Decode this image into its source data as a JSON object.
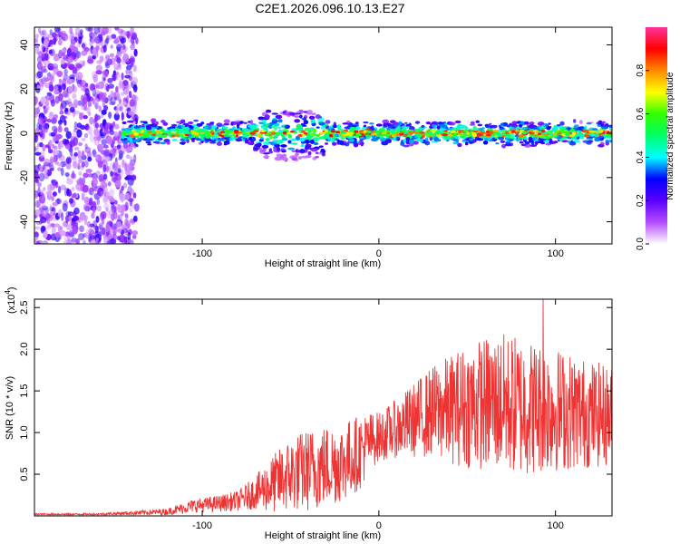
{
  "figure_title": "C2E1.2026.096.10.13.E27",
  "chart_data": [
    {
      "type": "heatmap",
      "name": "spectrogram",
      "xlabel": "Height of straight line (km)",
      "ylabel": "Frequency (Hz)",
      "xlim": [
        -195,
        132
      ],
      "ylim": [
        -50,
        48
      ],
      "xticks": [
        -100,
        0,
        100
      ],
      "xtick_labels": [
        "-100",
        "0",
        "100"
      ],
      "yticks": [
        -40,
        -20,
        0,
        20,
        40
      ],
      "ytick_labels": [
        "-40",
        "-20",
        "0",
        "20",
        "40"
      ],
      "colorbar": {
        "label": "Normalized spectral amplitude",
        "range": [
          0,
          1
        ],
        "ticks": [
          0.0,
          0.2,
          0.4,
          0.6,
          0.8
        ],
        "tick_labels": [
          "0.0",
          "0.2",
          "0.4",
          "0.6",
          "0.8"
        ],
        "colors": [
          "#ffffff",
          "#b44cff",
          "#5a00ff",
          "#0000ff",
          "#00ffff",
          "#00ff66",
          "#33ff00",
          "#ffff00",
          "#ff8800",
          "#ff0000",
          "#ff3399"
        ]
      },
      "noise_region_x": [
        -195,
        -137
      ],
      "band_x": [
        -145,
        132
      ],
      "band_center_hz": 0,
      "band_halfwidth_hz": 5,
      "disturbance_x": [
        -70,
        -30
      ],
      "disturbance_spread_hz": [
        -12,
        10
      ]
    },
    {
      "type": "line",
      "name": "snr",
      "xlabel": "Height of straight line (km)",
      "ylabel": "SNR (10 * v/v)",
      "multiplier_label": "(x10",
      "multiplier_exp": "4",
      "xlim": [
        -195,
        132
      ],
      "ylim": [
        0,
        2.6
      ],
      "xticks": [
        -100,
        0,
        100
      ],
      "xtick_labels": [
        "-100",
        "0",
        "100"
      ],
      "yticks": [
        0.5,
        1.0,
        1.5,
        2.0,
        2.5
      ],
      "ytick_labels": [
        "0.5",
        "1.0",
        "1.5",
        "2.0",
        "2.5"
      ],
      "color": "#ee3333",
      "envelope": {
        "x": [
          -195,
          -160,
          -120,
          -105,
          -90,
          -80,
          -70,
          -60,
          -50,
          -40,
          -30,
          -20,
          -10,
          -5,
          0,
          10,
          20,
          30,
          40,
          50,
          60,
          70,
          80,
          90,
          100,
          110,
          120,
          132
        ],
        "base": [
          0.02,
          0.02,
          0.05,
          0.12,
          0.15,
          0.18,
          0.28,
          0.38,
          0.5,
          0.55,
          0.6,
          0.65,
          0.78,
          0.9,
          0.95,
          1.05,
          1.15,
          1.25,
          1.28,
          1.32,
          1.35,
          1.35,
          1.32,
          1.3,
          1.28,
          1.25,
          1.22,
          1.2
        ],
        "amplitude": [
          0.01,
          0.01,
          0.04,
          0.08,
          0.1,
          0.12,
          0.2,
          0.35,
          0.45,
          0.5,
          0.5,
          0.48,
          0.45,
          0.35,
          0.3,
          0.35,
          0.45,
          0.55,
          0.65,
          0.75,
          0.8,
          0.85,
          0.85,
          0.8,
          0.75,
          0.7,
          0.65,
          0.6
        ]
      },
      "peak": {
        "x": 93,
        "y": 2.6
      }
    }
  ]
}
